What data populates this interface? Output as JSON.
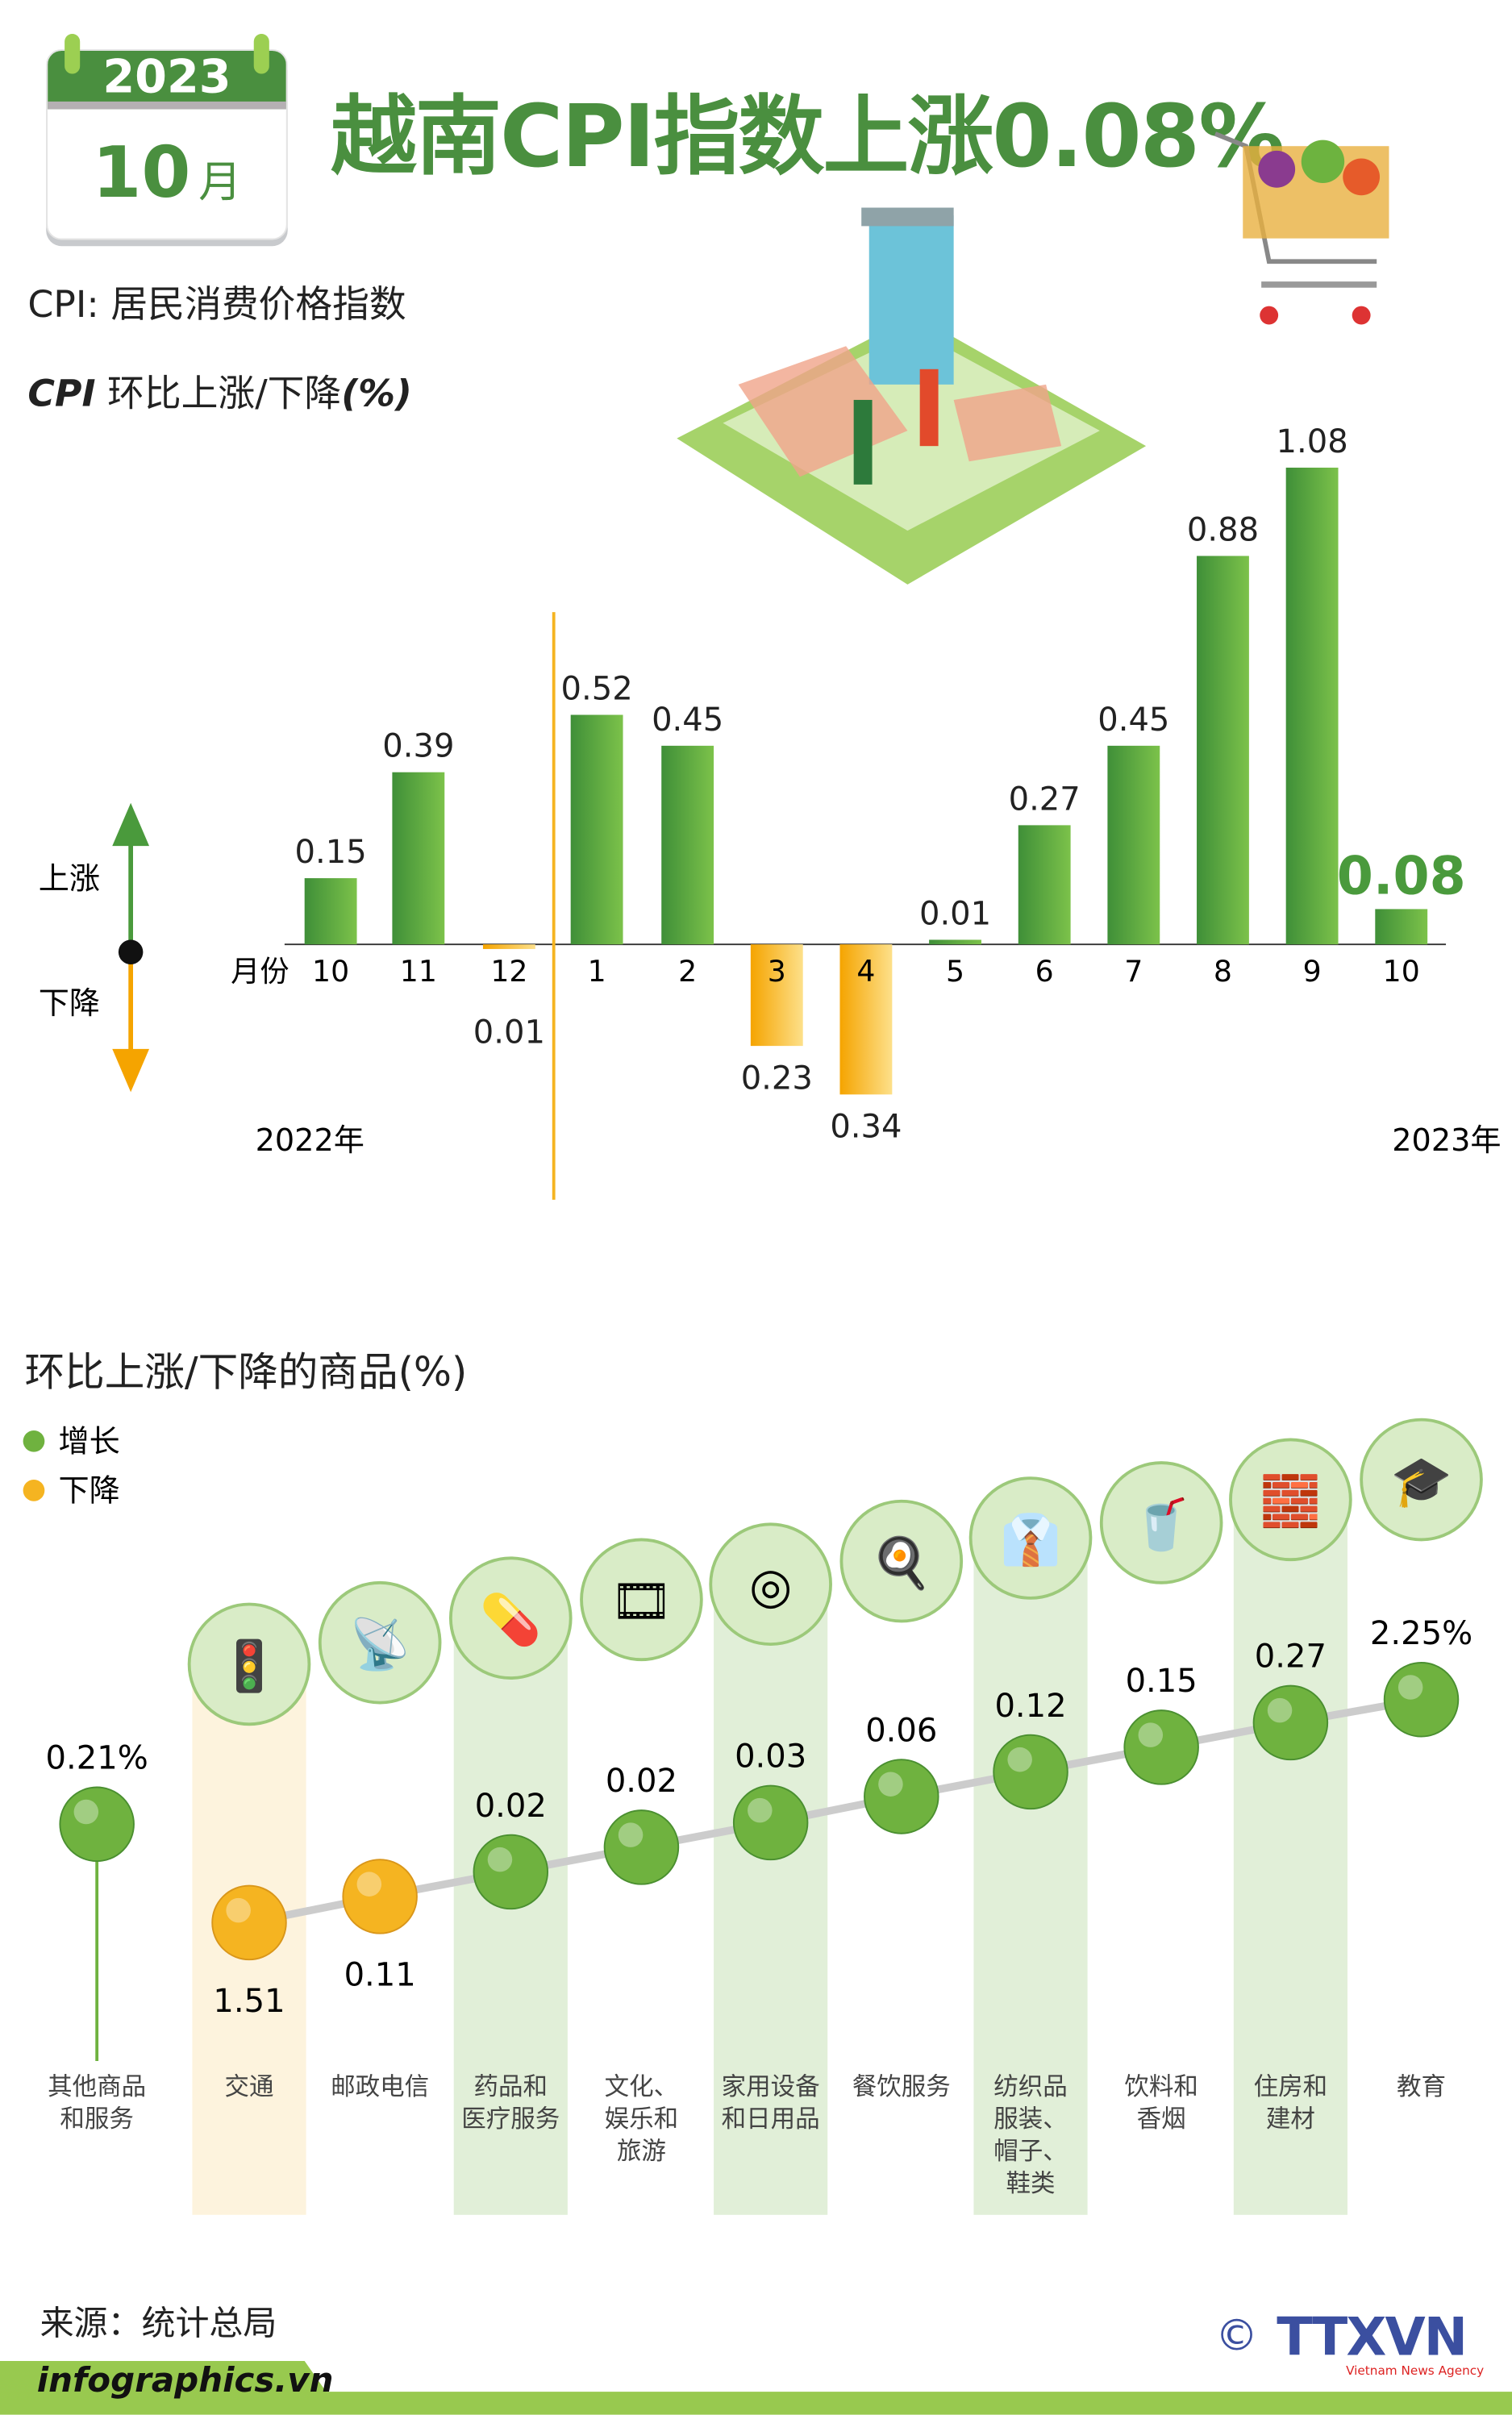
{
  "header": {
    "calendar_year": "2023",
    "calendar_month": "10",
    "calendar_month_unit": "月",
    "title": "越南CPI指数上涨0.08%",
    "definition": "CPI: 居民消费价格指数",
    "chart1_title_prefix": "CPI",
    "chart1_title": " 环比上涨/下降",
    "chart1_title_unit": "(%)"
  },
  "colors": {
    "green": "#4a9a3c",
    "light_green": "#8cc751",
    "orange": "#f5b421",
    "band_green": "#e1efd8",
    "band_orange": "#fdf3dd"
  },
  "chart_data": [
    {
      "type": "bar",
      "title": "CPI 环比上涨/下降(%)",
      "xlabel": "月份",
      "legend": [
        "上涨",
        "下降"
      ],
      "year_labels": [
        "2022年",
        "2023年"
      ],
      "categories": [
        "10",
        "11",
        "12",
        "1",
        "2",
        "3",
        "4",
        "5",
        "6",
        "7",
        "8",
        "9",
        "10"
      ],
      "values": [
        0.15,
        0.39,
        -0.01,
        0.52,
        0.45,
        -0.23,
        -0.34,
        0.01,
        0.27,
        0.45,
        0.88,
        1.08,
        0.08
      ],
      "labels": [
        "0.15",
        "0.39",
        "0.01",
        "0.52",
        "0.45",
        "0.23",
        "0.34",
        "0.01",
        "0.27",
        "0.45",
        "0.88",
        "1.08",
        "0.08"
      ]
    },
    {
      "type": "scatter",
      "title": "环比上涨/下降的商品(%)",
      "legend": [
        {
          "name": "增长",
          "color": "#6fb23f"
        },
        {
          "name": "下降",
          "color": "#f5b421"
        }
      ],
      "categories": [
        "其他商品\n和服务",
        "交通",
        "邮政电信",
        "药品和\n医疗服务",
        "文化、\n娱乐和\n旅游",
        "家用设备\n和日用品",
        "餐饮服务",
        "纺织品\n服装、\n帽子、\n鞋类",
        "饮料和\n香烟",
        "住房和\n建材",
        "教育"
      ],
      "icons": [
        "",
        "traffic-light-icon",
        "antenna-tower-icon",
        "medicine-pill-icon",
        "film-reel-icon",
        "washing-machine-icon",
        "meal-plate-icon",
        "clothing-shoes-icon",
        "drinks-cigarettes-icon",
        "bricks-helmet-icon",
        "graduation-cap-icon"
      ],
      "values": [
        0.21,
        -1.51,
        -0.11,
        0.02,
        0.02,
        0.03,
        0.06,
        0.12,
        0.15,
        0.27,
        2.25
      ],
      "labels": [
        "0.21%",
        "1.51",
        "0.11",
        "0.02",
        "0.02",
        "0.03",
        "0.06",
        "0.12",
        "0.15",
        "0.27",
        "2.25%"
      ]
    }
  ],
  "footer": {
    "source": "来源：统计总局",
    "site": "infographics.vn",
    "copyright": "©",
    "logo": "TTXVN",
    "logo_sub": "Vietnam News Agency"
  }
}
